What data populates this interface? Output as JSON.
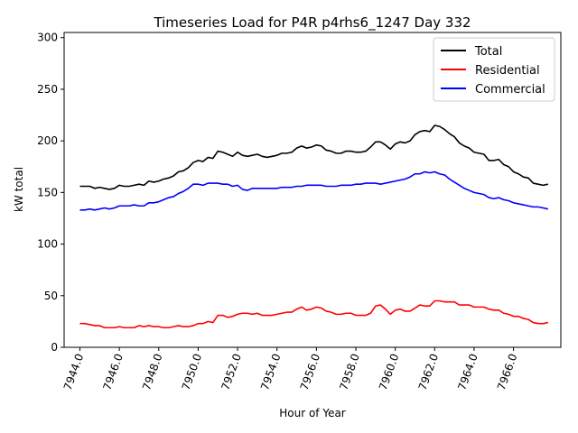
{
  "chart_data": {
    "type": "line",
    "title": "Timeseries Load for P4R p4rhs6_1247  Day 332",
    "xlabel": "Hour of Year",
    "ylabel": "kW total",
    "xlim": [
      7943.2,
      7968.4
    ],
    "ylim": [
      0,
      305
    ],
    "xticks": [
      7944.0,
      7946.0,
      7948.0,
      7950.0,
      7952.0,
      7954.0,
      7956.0,
      7958.0,
      7960.0,
      7962.0,
      7964.0,
      7966.0
    ],
    "xtick_labels": [
      "7944.0",
      "7946.0",
      "7948.0",
      "7950.0",
      "7952.0",
      "7954.0",
      "7956.0",
      "7958.0",
      "7960.0",
      "7962.0",
      "7964.0",
      "7966.0"
    ],
    "yticks": [
      0,
      50,
      100,
      150,
      200,
      250,
      300
    ],
    "ytick_labels": [
      "0",
      "50",
      "100",
      "150",
      "200",
      "250",
      "300"
    ],
    "grid": false,
    "legend_position": "top-right",
    "x": [
      7944.0,
      7944.25,
      7944.5,
      7944.75,
      7945.0,
      7945.25,
      7945.5,
      7945.75,
      7946.0,
      7946.25,
      7946.5,
      7946.75,
      7947.0,
      7947.25,
      7947.5,
      7947.75,
      7948.0,
      7948.25,
      7948.5,
      7948.75,
      7949.0,
      7949.25,
      7949.5,
      7949.75,
      7950.0,
      7950.25,
      7950.5,
      7950.75,
      7951.0,
      7951.25,
      7951.5,
      7951.75,
      7952.0,
      7952.25,
      7952.5,
      7952.75,
      7953.0,
      7953.25,
      7953.5,
      7953.75,
      7954.0,
      7954.25,
      7954.5,
      7954.75,
      7955.0,
      7955.25,
      7955.5,
      7955.75,
      7956.0,
      7956.25,
      7956.5,
      7956.75,
      7957.0,
      7957.25,
      7957.5,
      7957.75,
      7958.0,
      7958.25,
      7958.5,
      7958.75,
      7959.0,
      7959.25,
      7959.5,
      7959.75,
      7960.0,
      7960.25,
      7960.5,
      7960.75,
      7961.0,
      7961.25,
      7961.5,
      7961.75,
      7962.0,
      7962.25,
      7962.5,
      7962.75,
      7963.0,
      7963.25,
      7963.5,
      7963.75,
      7964.0,
      7964.25,
      7964.5,
      7964.75,
      7965.0,
      7965.25,
      7965.5,
      7965.75,
      7966.0,
      7966.25,
      7966.5,
      7966.75,
      7967.0,
      7967.25,
      7967.5,
      7967.75
    ],
    "series": [
      {
        "name": "Total",
        "color": "#000000",
        "values": [
          156,
          156,
          156,
          154,
          155,
          154,
          153,
          154,
          157,
          156,
          156,
          157,
          158,
          157,
          161,
          160,
          161,
          163,
          164,
          166,
          170,
          171,
          174,
          179,
          181,
          180,
          184,
          183,
          190,
          189,
          187,
          185,
          189,
          186,
          185,
          186,
          187,
          185,
          184,
          185,
          186,
          188,
          188,
          189,
          193,
          195,
          193,
          194,
          196,
          195,
          191,
          190,
          188,
          188,
          190,
          190,
          189,
          189,
          190,
          194,
          199,
          199,
          196,
          192,
          197,
          199,
          198,
          200,
          206,
          209,
          210,
          209,
          215,
          214,
          211,
          207,
          204,
          198,
          195,
          193,
          189,
          188,
          187,
          181,
          181,
          182,
          177,
          175,
          170,
          168,
          165,
          164,
          159,
          158,
          157,
          158
        ]
      },
      {
        "name": "Residential",
        "color": "#ff0000",
        "values": [
          23,
          23,
          22,
          21,
          21,
          19,
          19,
          19,
          20,
          19,
          19,
          19,
          21,
          20,
          21,
          20,
          20,
          19,
          19,
          20,
          21,
          20,
          20,
          21,
          23,
          23,
          25,
          24,
          31,
          31,
          29,
          30,
          32,
          33,
          33,
          32,
          33,
          31,
          31,
          31,
          32,
          33,
          34,
          34,
          37,
          39,
          36,
          37,
          39,
          38,
          35,
          34,
          32,
          32,
          33,
          33,
          31,
          31,
          31,
          33,
          40,
          41,
          37,
          32,
          36,
          37,
          35,
          35,
          38,
          41,
          40,
          40,
          45,
          45,
          44,
          44,
          44,
          41,
          41,
          41,
          39,
          39,
          39,
          37,
          36,
          36,
          33,
          32,
          30,
          30,
          28,
          27,
          24,
          23,
          23,
          24
        ]
      },
      {
        "name": "Commercial",
        "color": "#0000ff",
        "values": [
          133,
          133,
          134,
          133,
          134,
          135,
          134,
          135,
          137,
          137,
          137,
          138,
          137,
          137,
          140,
          140,
          141,
          143,
          145,
          146,
          149,
          151,
          154,
          158,
          158,
          157,
          159,
          159,
          159,
          158,
          158,
          156,
          157,
          153,
          152,
          154,
          154,
          154,
          154,
          154,
          154,
          155,
          155,
          155,
          156,
          156,
          157,
          157,
          157,
          157,
          156,
          156,
          156,
          157,
          157,
          157,
          158,
          158,
          159,
          159,
          159,
          158,
          159,
          160,
          161,
          162,
          163,
          165,
          168,
          168,
          170,
          169,
          170,
          168,
          167,
          163,
          160,
          157,
          154,
          152,
          150,
          149,
          148,
          145,
          144,
          145,
          143,
          142,
          140,
          139,
          138,
          137,
          136,
          136,
          135,
          134
        ]
      }
    ]
  }
}
